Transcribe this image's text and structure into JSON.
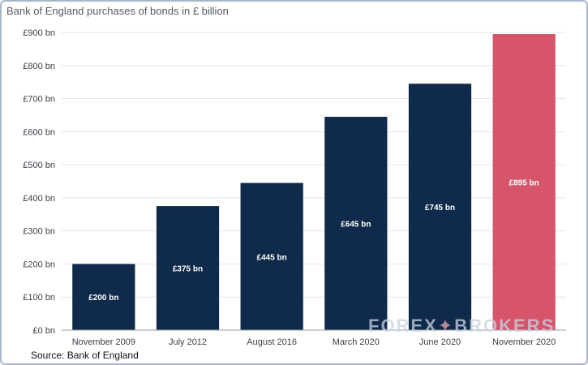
{
  "chart_data": {
    "type": "bar",
    "title": "Bank of England purchases of bonds in £ billion",
    "xlabel": "",
    "ylabel": "",
    "categories": [
      "November 2009",
      "July 2012",
      "August 2016",
      "March 2020",
      "June 2020",
      "November 2020"
    ],
    "values": [
      200,
      375,
      445,
      645,
      745,
      895
    ],
    "data_labels": [
      "£200 bn",
      "£375 bn",
      "£445 bn",
      "£645 bn",
      "£745 bn",
      "£895 bn"
    ],
    "bar_colors": [
      "#0f2a4a",
      "#0f2a4a",
      "#0f2a4a",
      "#0f2a4a",
      "#0f2a4a",
      "#d6556b"
    ],
    "ylim": [
      0,
      900
    ],
    "yticks": [
      0,
      100,
      200,
      300,
      400,
      500,
      600,
      700,
      800,
      900
    ],
    "ytick_labels": [
      "£0 bn",
      "£100 bn",
      "£200 bn",
      "£300 bn",
      "£400 bn",
      "£500 bn",
      "£600 bn",
      "£700 bn",
      "£800 bn",
      "£900 bn"
    ],
    "grid": true,
    "legend": "none"
  },
  "source": "Source: Bank of England",
  "watermark": {
    "left": "FOREX",
    "mark": "✦",
    "right": "BROKERS"
  }
}
